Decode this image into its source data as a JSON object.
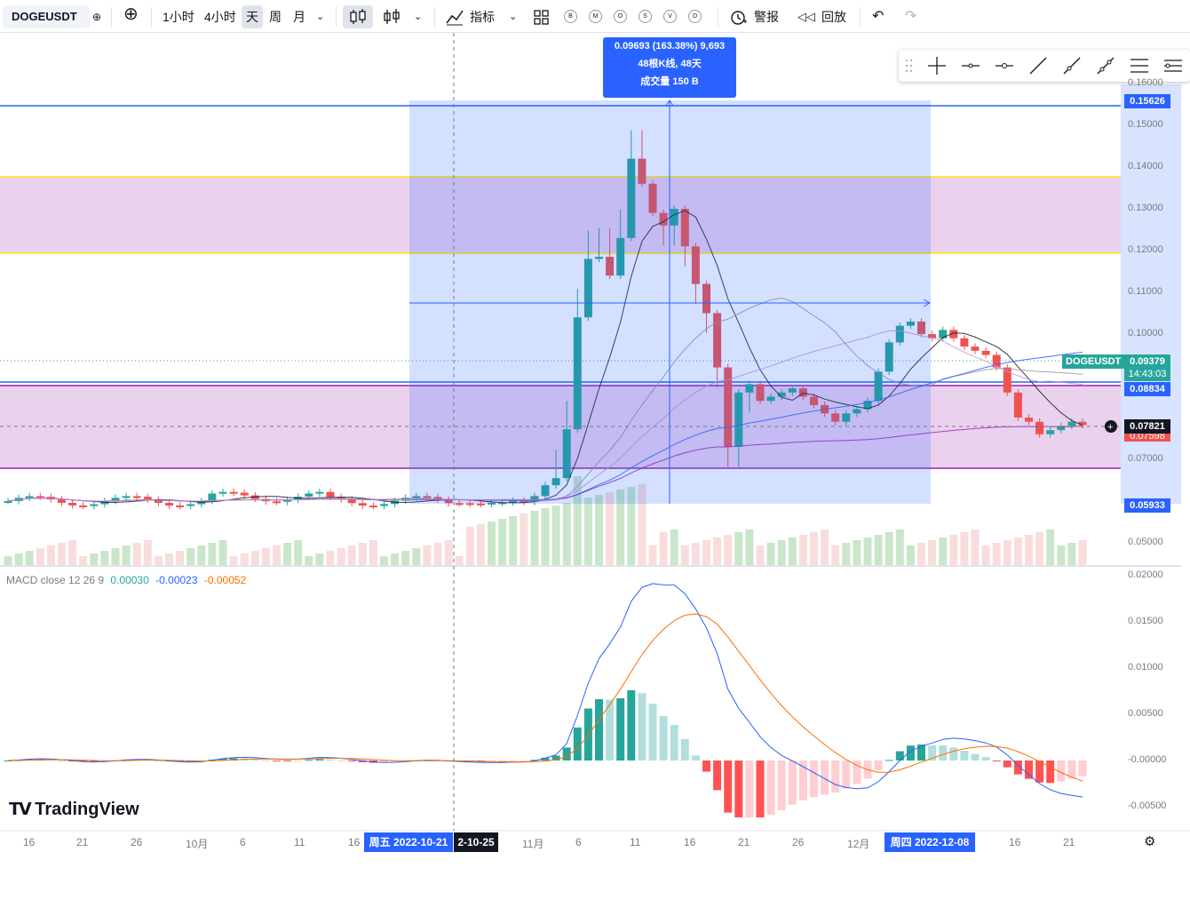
{
  "toolbar": {
    "symbol": "DOGEUSDT",
    "intervals": [
      "1小时",
      "4小时",
      "天",
      "周",
      "月"
    ],
    "active_interval": "天",
    "indicators_label": "指标",
    "indicator_shortcuts": [
      "B",
      "M",
      "O",
      "S",
      "V",
      "D"
    ],
    "alert_label": "警报",
    "replay_label": "回放"
  },
  "measure": {
    "line1": "0.09693 (163.38%) 9,693",
    "line2": "48根K线, 48天",
    "line3": "成交量 150 B"
  },
  "price_axis": {
    "ticks": [
      "0.16000",
      "0.15000",
      "0.14000",
      "0.13000",
      "0.12000",
      "0.11000",
      "0.10000",
      "0.07000",
      "0.05000"
    ],
    "top_label": "0.15626",
    "symbol_tag": "DOGEUSDT",
    "last_price": "0.09379",
    "countdown": "14:43:03",
    "line_label": "0.08834",
    "cursor_price": "0.07821",
    "under_cursor": "0.07598",
    "bottom_label": "0.05933"
  },
  "macd": {
    "title": "MACD close 12 26 9",
    "hist": "0.00030",
    "macd": "-0.00023",
    "signal": "-0.00052",
    "ticks": [
      "0.02000",
      "0.01500",
      "0.01000",
      "0.00500",
      "-0.00000",
      "-0.00500"
    ]
  },
  "time_axis": {
    "ticks": [
      "16",
      "21",
      "26",
      "10月",
      "6",
      "11",
      "16",
      "11月",
      "6",
      "11",
      "16",
      "21",
      "26",
      "12月",
      "16",
      "21"
    ],
    "start_label": "周五 2022-10-21",
    "cursor_label": "2-10-25",
    "end_label": "周四 2022-12-08"
  },
  "branding": "TradingView",
  "colors": {
    "up": "#26a69a",
    "down": "#ef5350",
    "accent": "#2962ff",
    "zone": "#e1bee7"
  },
  "chart_data": {
    "type": "candlestick",
    "series": [
      {
        "name": "DOGEUSDT",
        "ohlc_close_approx": [
          0.0595,
          0.0594,
          0.0593,
          0.0596,
          0.0597,
          0.0601,
          0.0598,
          0.0612,
          0.0638,
          0.0655,
          0.0772,
          0.104,
          0.118,
          0.1185,
          0.114,
          0.123,
          0.142,
          0.136,
          0.129,
          0.126,
          0.13,
          0.121,
          0.112,
          0.105,
          0.092,
          0.073,
          0.086,
          0.088,
          0.084,
          0.085,
          0.086,
          0.087,
          0.085,
          0.083,
          0.081,
          0.079,
          0.081,
          0.082,
          0.084,
          0.091,
          0.098,
          0.102,
          0.103,
          0.1,
          0.099,
          0.101,
          0.099,
          0.097,
          0.096,
          0.095,
          0.092,
          0.086,
          0.08,
          0.079,
          0.076,
          0.077,
          0.078,
          0.079,
          0.0782
        ]
      }
    ],
    "ylim": [
      0.045,
      0.162
    ],
    "macd_ylim": [
      -0.0065,
      0.021
    ]
  }
}
